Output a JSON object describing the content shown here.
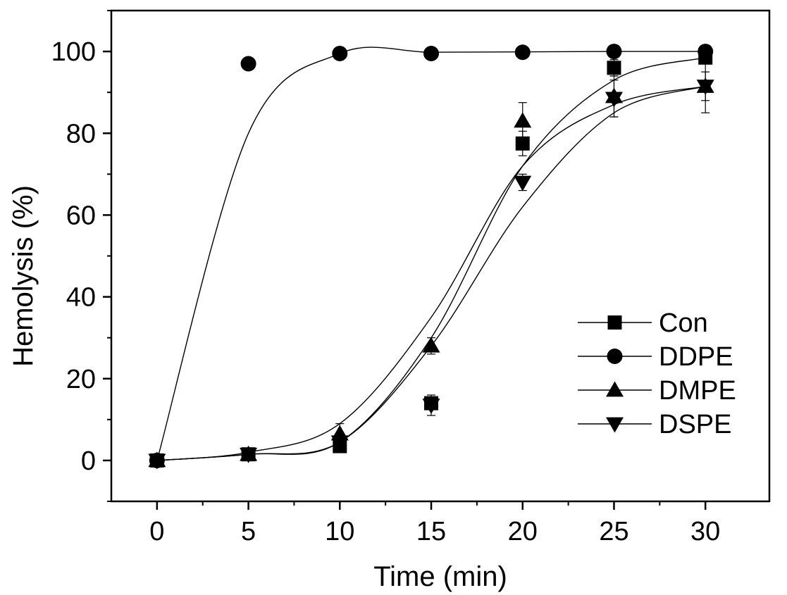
{
  "chart_data": {
    "type": "scatter",
    "xlabel": "Time (min)",
    "ylabel": "Hemolysis (%)",
    "xlim": [
      -2.5,
      33.5
    ],
    "ylim": [
      -10,
      110
    ],
    "xticks": [
      0,
      5,
      10,
      15,
      20,
      25,
      30
    ],
    "yticks": [
      0,
      20,
      40,
      60,
      80,
      100
    ],
    "grid": false,
    "legend_position": "lower-right",
    "x": [
      0,
      5,
      10,
      15,
      20,
      25,
      30
    ],
    "series": [
      {
        "name": "Con",
        "marker": "square",
        "values": [
          0,
          1.5,
          3.5,
          14,
          77.5,
          96,
          98.5
        ],
        "errors": [
          0,
          0,
          0.5,
          1,
          3,
          2,
          1.5
        ],
        "fit": [
          0,
          1.5,
          4.5,
          30,
          72,
          93,
          98.5
        ]
      },
      {
        "name": "DDPE",
        "marker": "circle",
        "values": [
          0,
          97,
          99.5,
          99.5,
          99.8,
          100,
          100
        ],
        "errors": [
          0,
          0,
          0,
          0,
          0,
          0,
          0
        ],
        "fit": [
          0,
          80,
          99.5,
          99.8,
          99.9,
          100,
          100
        ]
      },
      {
        "name": "DMPE",
        "marker": "triangle-up",
        "values": [
          0,
          1.5,
          6.5,
          28,
          83,
          89,
          91.5
        ],
        "errors": [
          0,
          0.5,
          2.5,
          2,
          4.5,
          5,
          6.5
        ],
        "fit": [
          0,
          2,
          9,
          35,
          72,
          87,
          91.5
        ]
      },
      {
        "name": "DSPE",
        "marker": "triangle-down",
        "values": [
          0,
          1.5,
          4.5,
          13.5,
          68,
          88.5,
          91.5
        ],
        "errors": [
          0,
          0.5,
          1,
          2.5,
          2,
          4.5,
          3.5
        ],
        "fit": [
          0,
          1.5,
          4.5,
          28,
          62,
          85,
          91.5
        ]
      }
    ]
  }
}
